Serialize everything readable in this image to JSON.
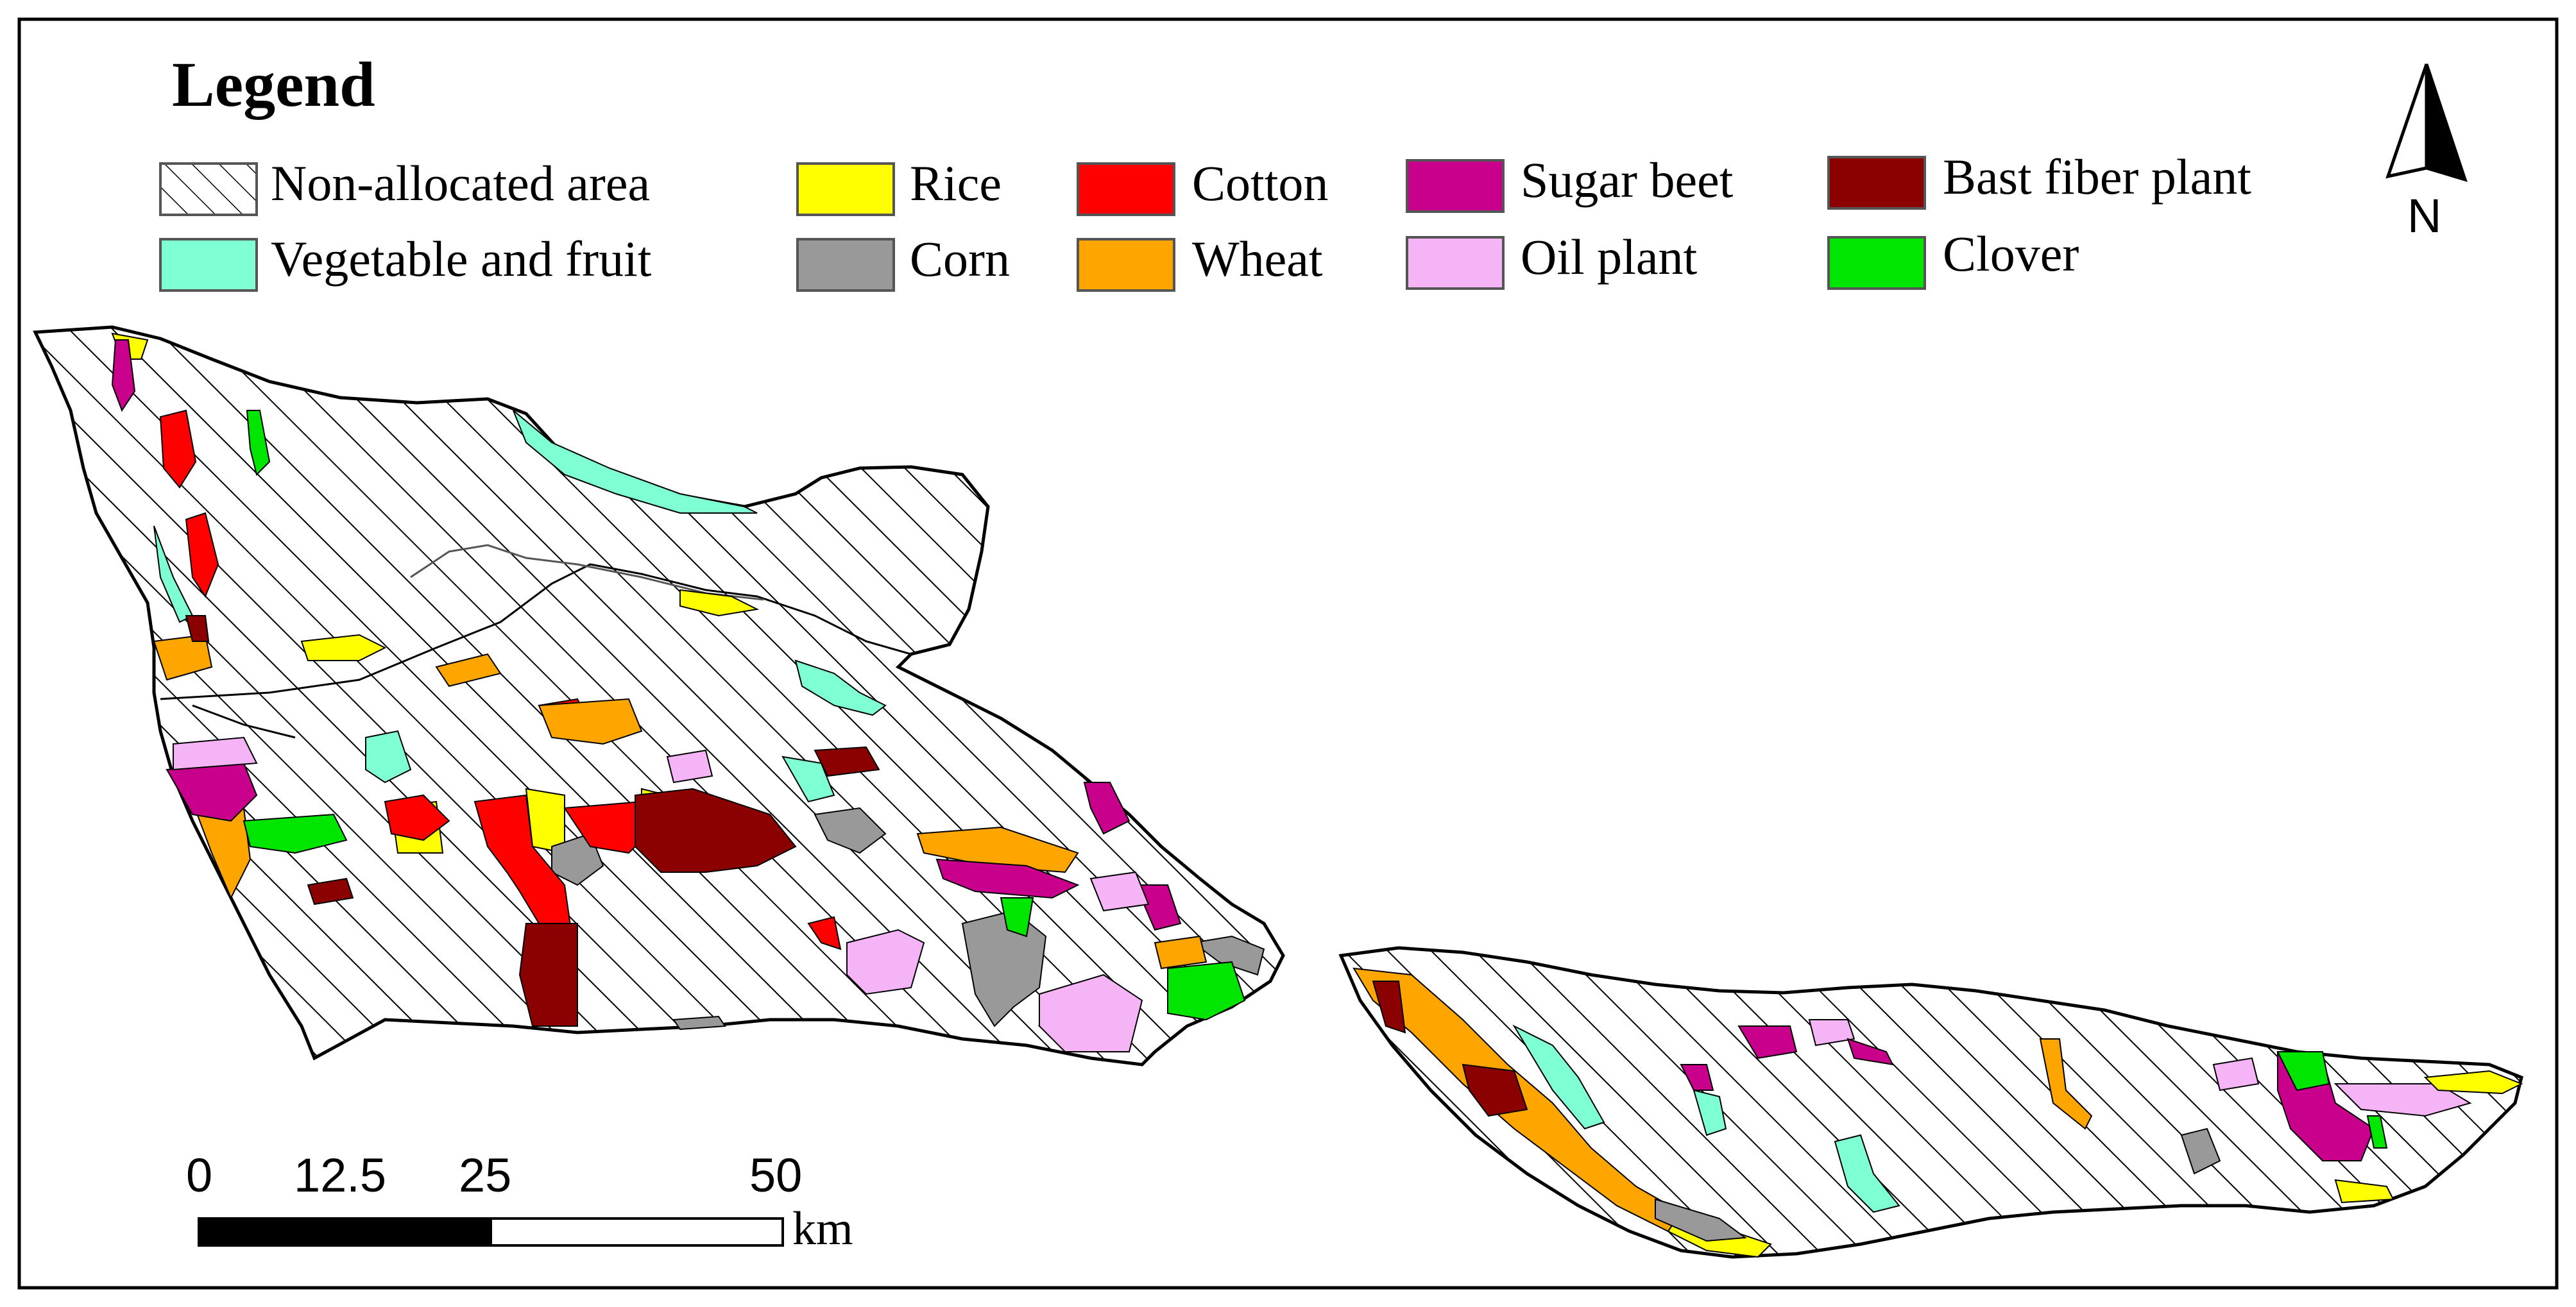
{
  "legend": {
    "title": "Legend",
    "items": [
      {
        "key": "non_allocated",
        "label": "Non-allocated area",
        "color": "hatch"
      },
      {
        "key": "vegetable_fruit",
        "label": "Vegetable and fruit",
        "color": "#7fffd4"
      },
      {
        "key": "rice",
        "label": "Rice",
        "color": "#ffff00"
      },
      {
        "key": "corn",
        "label": "Corn",
        "color": "#999999"
      },
      {
        "key": "cotton",
        "label": "Cotton",
        "color": "#ff0000"
      },
      {
        "key": "wheat",
        "label": "Wheat",
        "color": "#ffa500"
      },
      {
        "key": "sugar_beet",
        "label": "Sugar beet",
        "color": "#c8008c"
      },
      {
        "key": "oil_plant",
        "label": "Oil plant",
        "color": "#f5b4f5"
      },
      {
        "key": "bast_fiber",
        "label": "Bast fiber plant",
        "color": "#8b0000"
      },
      {
        "key": "clover",
        "label": "Clover",
        "color": "#00e600"
      }
    ]
  },
  "north_arrow": {
    "label": "N"
  },
  "scale_bar": {
    "ticks": [
      "0",
      "12.5",
      "25",
      "50"
    ],
    "unit": "km"
  }
}
